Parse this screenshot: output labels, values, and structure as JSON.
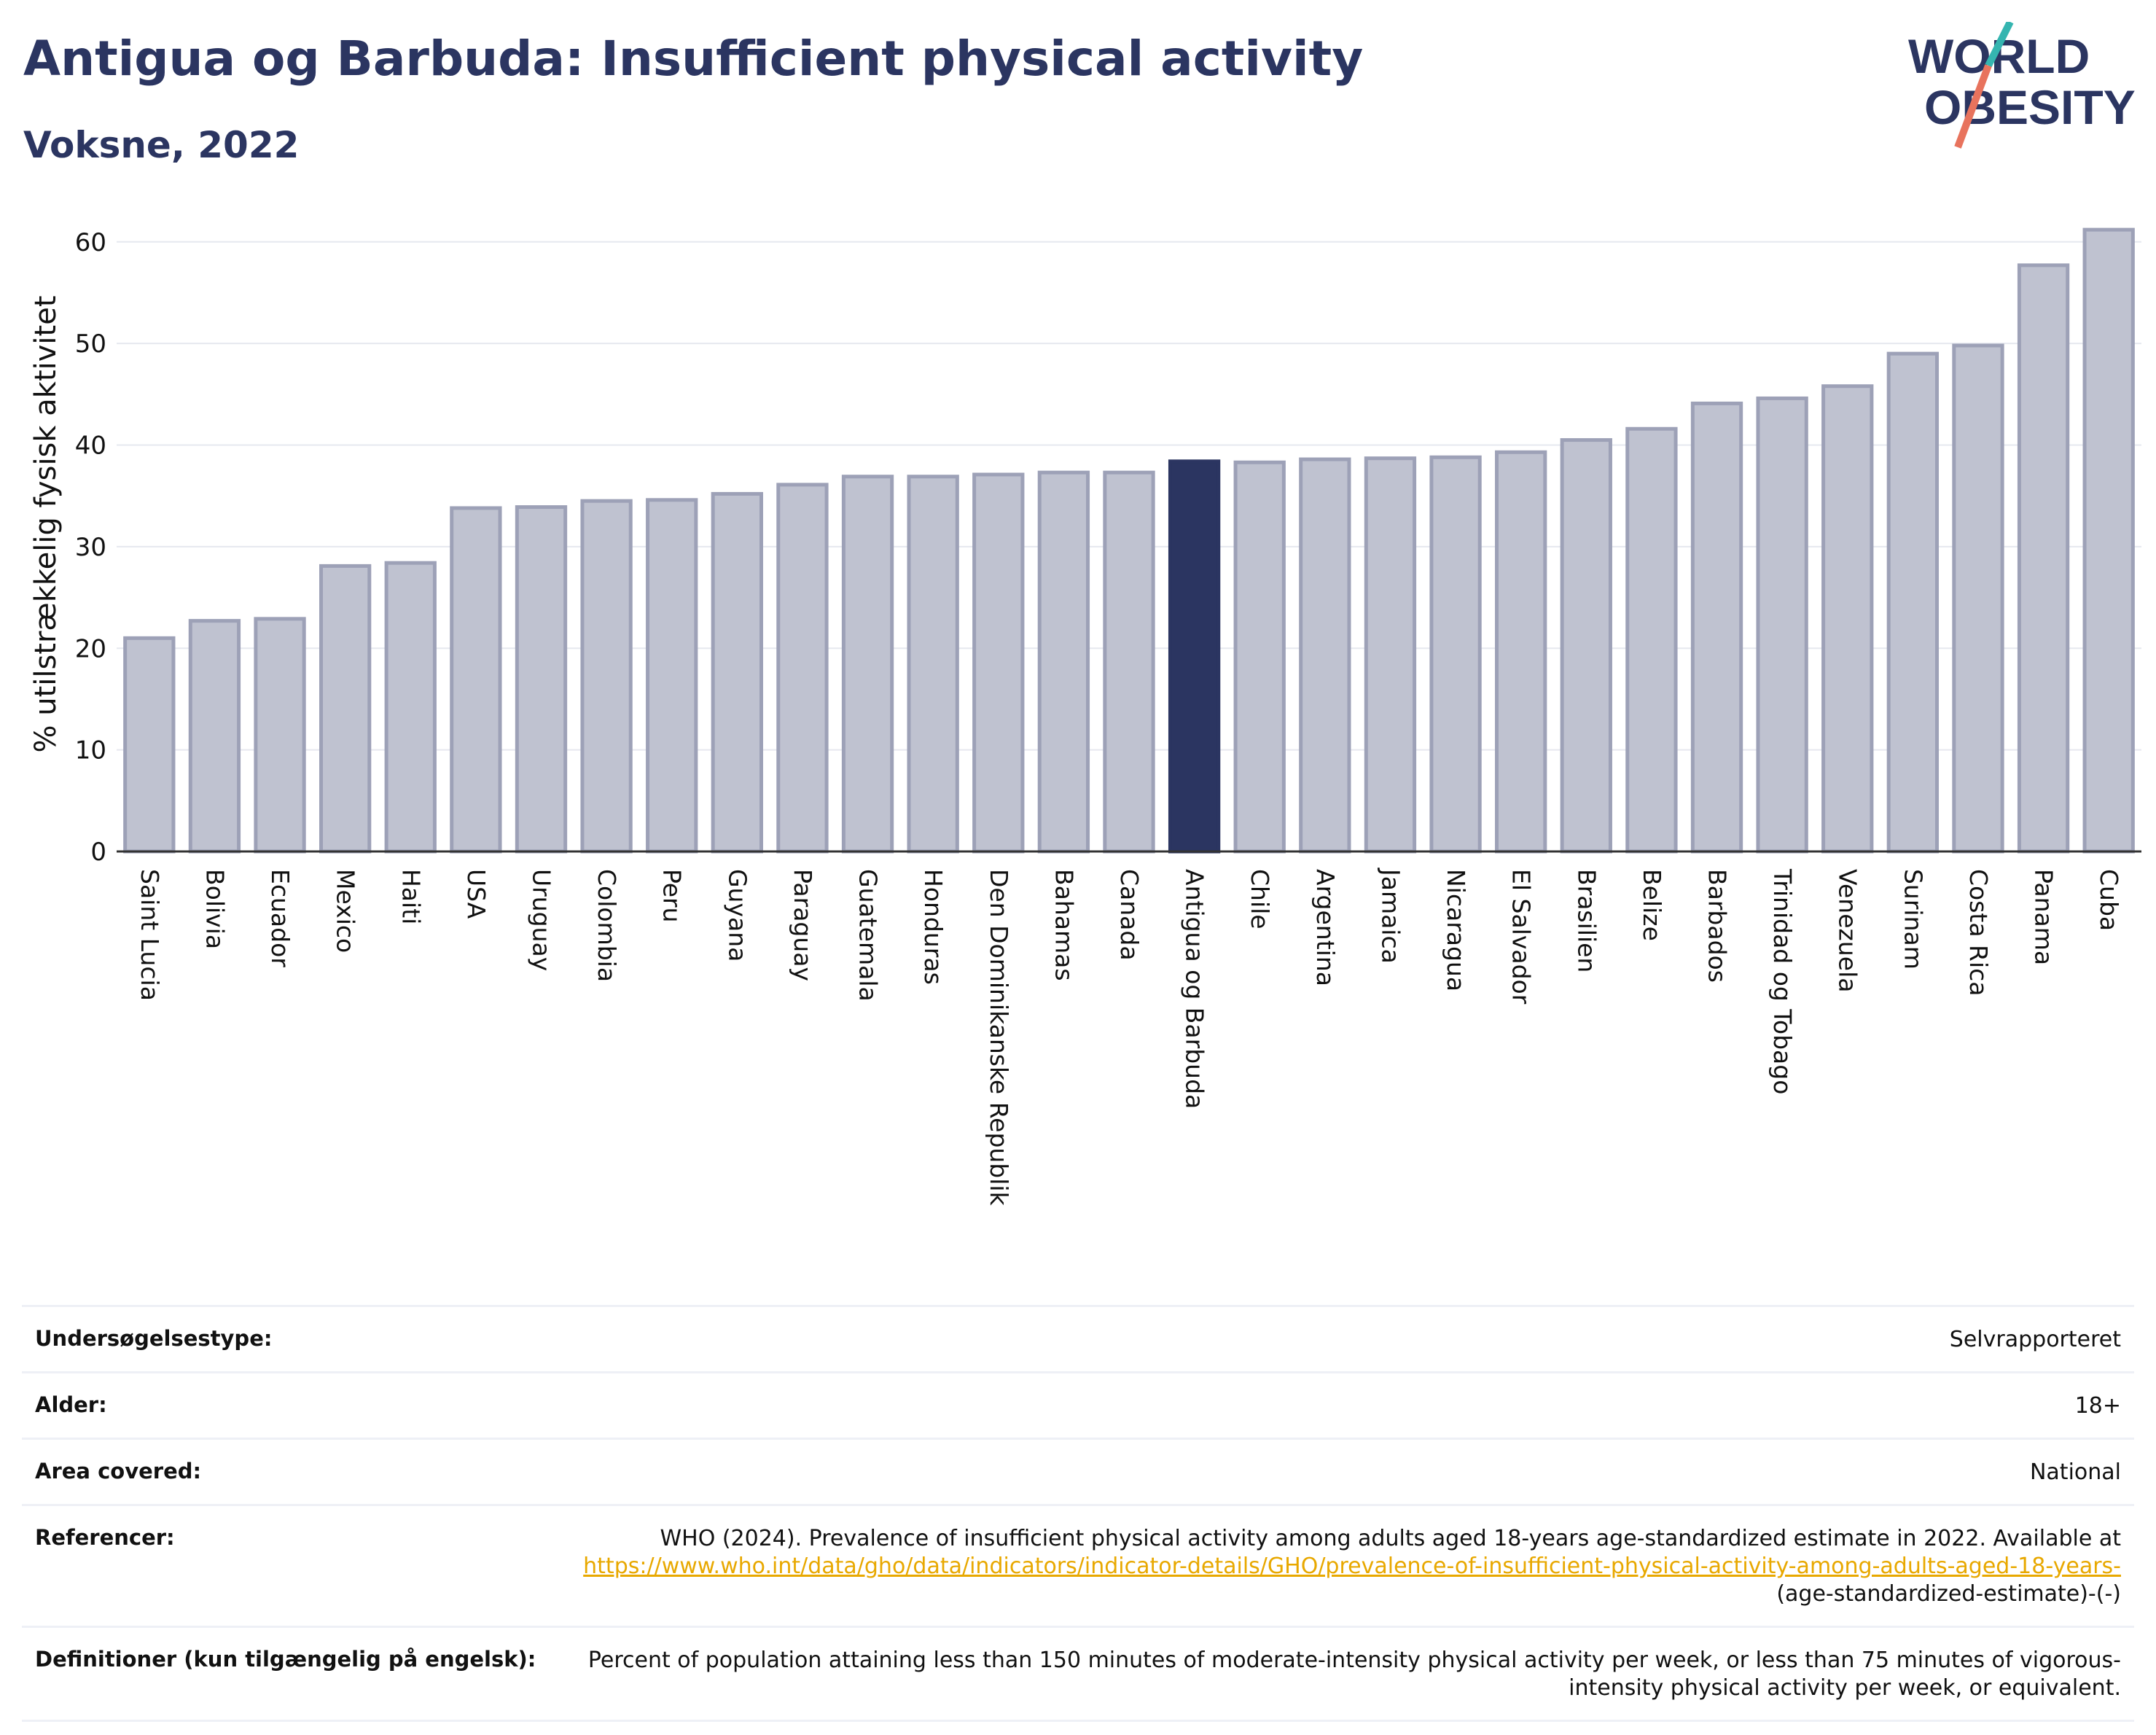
{
  "header": {
    "title": "Antigua og Barbuda: Insufficient physical activity",
    "subtitle": "Voksne, 2022"
  },
  "logo": {
    "line1": "WORLD",
    "line2": "OBESITY"
  },
  "colors": {
    "highlight": "#2b3561",
    "bar": "#bfc2d0",
    "bar_edge": "#9da1b7",
    "brand": "#2b3561",
    "accent_teal": "#35b5b0",
    "accent_coral": "#e8735d",
    "link": "#e8a800"
  },
  "chart_data": {
    "type": "bar",
    "title": "Antigua og Barbuda: Insufficient physical activity",
    "subtitle": "Voksne, 2022",
    "ylabel": "% utilstrækkelig fysisk aktivitet",
    "xlabel": "",
    "ylim": [
      0,
      63
    ],
    "yticks": [
      0,
      10,
      20,
      30,
      40,
      50,
      60
    ],
    "grid": true,
    "highlight": "Antigua og Barbuda",
    "categories": [
      "Saint Lucia",
      "Bolivia",
      "Ecuador",
      "Mexico",
      "Haiti",
      "USA",
      "Uruguay",
      "Colombia",
      "Peru",
      "Guyana",
      "Paraguay",
      "Guatemala",
      "Honduras",
      "Den Dominikanske Republik",
      "Bahamas",
      "Canada",
      "Antigua og Barbuda",
      "Chile",
      "Argentina",
      "Jamaica",
      "Nicaragua",
      "El Salvador",
      "Brasilien",
      "Belize",
      "Barbados",
      "Trinidad og Tobago",
      "Venezuela",
      "Surinam",
      "Costa Rica",
      "Panama",
      "Cuba"
    ],
    "values": [
      21.0,
      22.7,
      22.9,
      28.1,
      28.4,
      33.8,
      33.9,
      34.5,
      34.6,
      35.2,
      36.1,
      36.9,
      36.9,
      37.1,
      37.3,
      37.3,
      38.4,
      38.3,
      38.6,
      38.7,
      38.8,
      39.3,
      40.5,
      41.6,
      44.1,
      44.6,
      45.8,
      49.0,
      49.8,
      57.7,
      61.2
    ]
  },
  "info": [
    {
      "label": "Undersøgelsestype:",
      "value": "Selvrapporteret"
    },
    {
      "label": "Alder:",
      "value": "18+"
    },
    {
      "label": "Area covered:",
      "value": "National"
    },
    {
      "label": "Referencer:",
      "value": "WHO (2024). Prevalence of insufficient physical activity among adults aged 18-years age-standardized estimate in 2022. Available at",
      "link": "https://www.who.int/data/gho/data/indicators/indicator-details/GHO/prevalence-of-insufficient-physical-activity-among-adults-aged-18-years-",
      "suffix": "(age-standardized-estimate)-(-)"
    },
    {
      "label": "Definitioner (kun tilgængelig på engelsk):",
      "value": "Percent of population attaining less than 150 minutes of moderate-intensity physical activity per week, or less than 75 minutes of vigorous-intensity physical activity per week, or equivalent."
    }
  ]
}
